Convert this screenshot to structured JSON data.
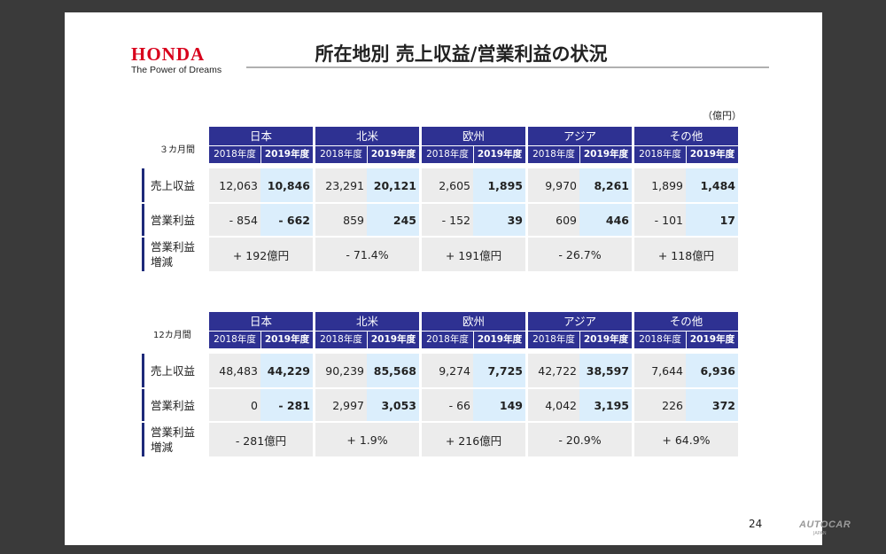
{
  "brand": {
    "logo_word": "HONDA",
    "tagline": "The Power of Dreams"
  },
  "title": "所在地別 売上収益/営業利益の状況",
  "unit": "（億円）",
  "page_number": "24",
  "watermark": {
    "text": "AUTOCAR",
    "sub": "JAPAN"
  },
  "colors": {
    "header_bg": "#2e3192",
    "cell_2018": "#ececec",
    "cell_2019": "#dbeefc",
    "brand_red": "#d8001c"
  },
  "row_labels": {
    "revenue": "売上収益",
    "operating_profit": "営業利益",
    "change_line1": "営業利益",
    "change_line2": "増減"
  },
  "year_labels": {
    "y2018": "2018年度",
    "y2019": "2019年度"
  },
  "tables": [
    {
      "period": "３カ月間",
      "regions": [
        {
          "name": "日本",
          "revenue": [
            "12,063",
            "10,846"
          ],
          "profit": [
            "- 854",
            "- 662"
          ],
          "change": "+ 192億円"
        },
        {
          "name": "北米",
          "revenue": [
            "23,291",
            "20,121"
          ],
          "profit": [
            "859",
            "245"
          ],
          "change": "- 71.4%"
        },
        {
          "name": "欧州",
          "revenue": [
            "2,605",
            "1,895"
          ],
          "profit": [
            "- 152",
            "39"
          ],
          "change": "+ 191億円"
        },
        {
          "name": "アジア",
          "revenue": [
            "9,970",
            "8,261"
          ],
          "profit": [
            "609",
            "446"
          ],
          "change": "- 26.7%"
        },
        {
          "name": "その他",
          "revenue": [
            "1,899",
            "1,484"
          ],
          "profit": [
            "- 101",
            "17"
          ],
          "change": "+ 118億円"
        }
      ]
    },
    {
      "period": "12カ月間",
      "regions": [
        {
          "name": "日本",
          "revenue": [
            "48,483",
            "44,229"
          ],
          "profit": [
            "0",
            "- 281"
          ],
          "change": "- 281億円"
        },
        {
          "name": "北米",
          "revenue": [
            "90,239",
            "85,568"
          ],
          "profit": [
            "2,997",
            "3,053"
          ],
          "change": "+ 1.9%"
        },
        {
          "name": "欧州",
          "revenue": [
            "9,274",
            "7,725"
          ],
          "profit": [
            "- 66",
            "149"
          ],
          "change": "+ 216億円"
        },
        {
          "name": "アジア",
          "revenue": [
            "42,722",
            "38,597"
          ],
          "profit": [
            "4,042",
            "3,195"
          ],
          "change": "- 20.9%"
        },
        {
          "name": "その他",
          "revenue": [
            "7,644",
            "6,936"
          ],
          "profit": [
            "226",
            "372"
          ],
          "change": "+ 64.9%"
        }
      ]
    }
  ]
}
